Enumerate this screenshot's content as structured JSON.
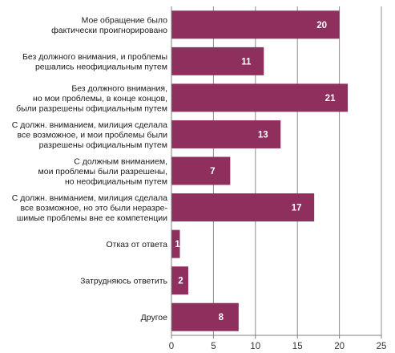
{
  "chart_data": {
    "type": "bar",
    "orientation": "horizontal",
    "categories": [
      [
        "Мое обращение было",
        "фактически проигнорировано"
      ],
      [
        "Без должного внимания, и проблемы",
        "решались неофициальным путем"
      ],
      [
        "Без должного внимания,",
        "но мои проблемы, в конце концов,",
        "были разрешены официальным путем"
      ],
      [
        "С должн. вниманием, милиция сделала",
        "все возможное, и мои проблемы были",
        "разрешены официальным путем"
      ],
      [
        "С должным вниманием,",
        "мои проблемы были разрешены,",
        "но неофициальным путем"
      ],
      [
        "С должн. вниманием, милиция сделала",
        "все возможное, но это были неразре-",
        "шимые проблемы вне ее компетенции"
      ],
      [
        "Отказ от ответа"
      ],
      [
        "Затрудняюсь ответить"
      ],
      [
        "Другое"
      ]
    ],
    "values": [
      20,
      11,
      21,
      13,
      7,
      17,
      1,
      2,
      8
    ],
    "data_labels": [
      "20",
      "11",
      "21",
      "13",
      "7",
      "17",
      "1",
      "2",
      "8"
    ],
    "xlim": [
      0,
      25
    ],
    "xticks": [
      "0",
      "5",
      "10",
      "15",
      "20",
      "25"
    ],
    "grid": true,
    "bar_color": "#8f2f5e",
    "grid_color": "#8c8c8c",
    "axis_color": "#7f7f7f"
  }
}
